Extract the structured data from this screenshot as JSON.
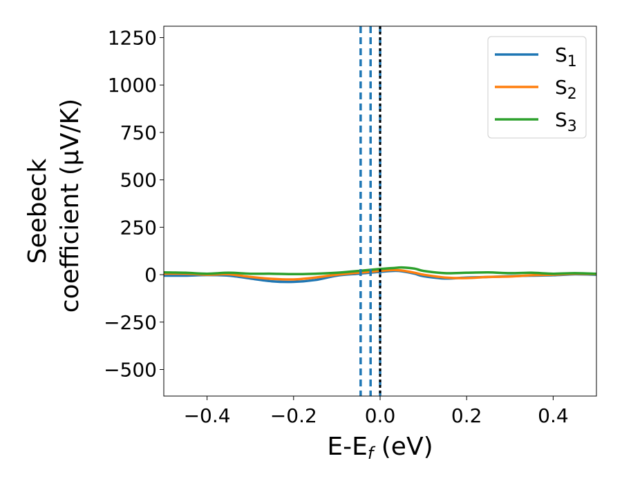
{
  "chart_data": {
    "type": "line",
    "xlabel": "E-E",
    "xlabel_sub": "f",
    "xlabel_unit": " (eV)",
    "ylabel_line1": "Seebeck",
    "ylabel_line2": "coefficient  (μV/K)",
    "xlim": [
      -0.5,
      0.5
    ],
    "ylim": [
      -640,
      1310
    ],
    "x_ticks": [
      -0.4,
      -0.2,
      0.0,
      0.2,
      0.4
    ],
    "x_tick_labels": [
      "−0.4",
      "−0.2",
      "0.0",
      "0.2",
      "0.4"
    ],
    "y_ticks": [
      -500,
      -250,
      0,
      250,
      500,
      750,
      1000,
      1250
    ],
    "y_tick_labels": [
      "−500",
      "−250",
      "0",
      "250",
      "500",
      "750",
      "1000",
      "1250"
    ],
    "grid": false,
    "legend_position": "top-right",
    "series": [
      {
        "name": "S",
        "sub": "1",
        "color": "#1f77b4",
        "x": [
          -0.5,
          -0.45,
          -0.4,
          -0.35,
          -0.3,
          -0.25,
          -0.2,
          -0.15,
          -0.1,
          -0.05,
          0.0,
          0.03,
          0.05,
          0.08,
          0.1,
          0.15,
          0.2,
          0.25,
          0.3,
          0.35,
          0.4,
          0.45,
          0.5
        ],
        "y": [
          -5,
          -5,
          -2,
          -5,
          -20,
          -35,
          -38,
          -28,
          -5,
          5,
          15,
          20,
          18,
          5,
          -8,
          -20,
          -15,
          -12,
          -8,
          -5,
          -3,
          2,
          0
        ]
      },
      {
        "name": "S",
        "sub": "2",
        "color": "#ff7f0e",
        "x": [
          -0.5,
          -0.45,
          -0.4,
          -0.35,
          -0.3,
          -0.25,
          -0.2,
          -0.15,
          -0.1,
          -0.05,
          0.0,
          0.03,
          0.05,
          0.08,
          0.1,
          0.15,
          0.2,
          0.25,
          0.3,
          0.35,
          0.4,
          0.45,
          0.5
        ],
        "y": [
          5,
          5,
          0,
          2,
          -12,
          -22,
          -25,
          -15,
          0,
          10,
          20,
          25,
          22,
          10,
          0,
          -15,
          -18,
          -12,
          -10,
          -3,
          0,
          5,
          3
        ]
      },
      {
        "name": "S",
        "sub": "3",
        "color": "#2ca02c",
        "x": [
          -0.5,
          -0.45,
          -0.4,
          -0.35,
          -0.3,
          -0.25,
          -0.2,
          -0.15,
          -0.1,
          -0.05,
          0.0,
          0.03,
          0.05,
          0.08,
          0.1,
          0.15,
          0.2,
          0.25,
          0.3,
          0.35,
          0.4,
          0.45,
          0.5
        ],
        "y": [
          12,
          10,
          5,
          10,
          5,
          5,
          3,
          5,
          10,
          20,
          30,
          35,
          38,
          32,
          20,
          8,
          10,
          12,
          8,
          10,
          5,
          8,
          5
        ]
      }
    ],
    "vlines": [
      {
        "x": -0.045,
        "color": "#1f77b4",
        "style": "dashed"
      },
      {
        "x": -0.022,
        "color": "#1f77b4",
        "style": "dashed"
      },
      {
        "x": 0.0,
        "color": "#1f77b4",
        "style": "dashed"
      },
      {
        "x": 0.0,
        "color": "#000000",
        "style": "dotted"
      }
    ]
  }
}
